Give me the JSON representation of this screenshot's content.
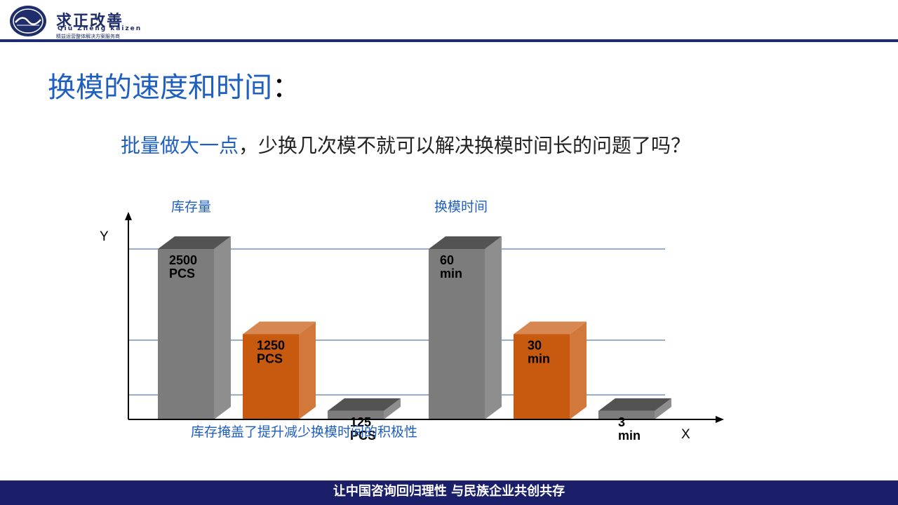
{
  "header": {
    "logo_name": "求正改善",
    "logo_en": "Qiu Zheng kaizen",
    "logo_sub": "精益运营整体解决方案服务商"
  },
  "slide": {
    "title": "换模的速度和时间",
    "title_colon": "：",
    "question_highlight": "批量做大一点",
    "question_rest": "，少换几次模不就可以解决换模时间长的问题了吗？"
  },
  "colors": {
    "gray_bar": "#7f7f7f",
    "orange_bar": "#c85a0f",
    "ref_line": "#2f5c8a",
    "title_blue": "#1f5fbf"
  },
  "chart_data": {
    "type": "bar",
    "title": "",
    "xlabel": "X",
    "ylabel": "Y",
    "groups": [
      {
        "label": "库存量",
        "values": [
          2500,
          1250,
          125
        ],
        "value_labels": [
          "2500\nPCS",
          "1250\nPCS",
          "125\nPCS"
        ],
        "colors": [
          "gray",
          "orange",
          "gray"
        ]
      },
      {
        "label": "换模时间",
        "values": [
          60,
          30,
          3
        ],
        "value_labels": [
          "60\nmin",
          "30\nmin",
          "3\nmin"
        ],
        "colors": [
          "gray",
          "orange",
          "gray"
        ]
      }
    ],
    "annotation": "库存掩盖了提升减少换模时间的积极性",
    "reference_lines": 3,
    "grid": false
  },
  "footer": {
    "text": "让中国咨询回归理性  与民族企业共创共存"
  }
}
